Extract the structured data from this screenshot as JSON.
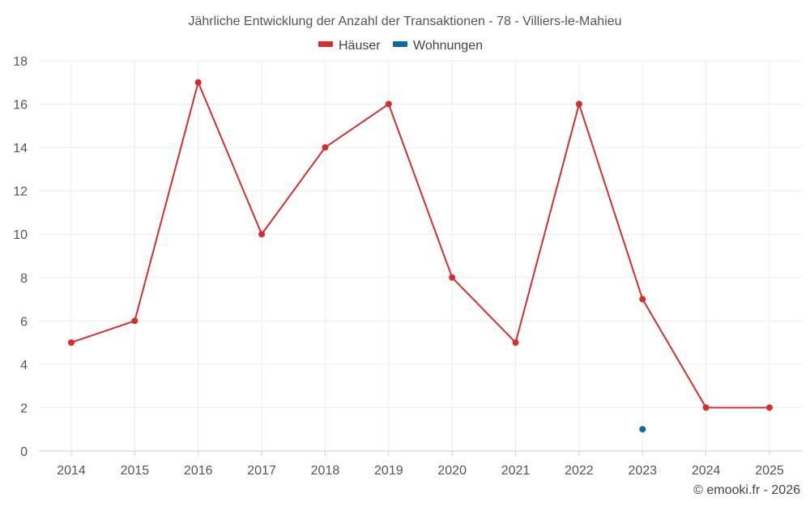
{
  "chart_data": {
    "type": "line",
    "title": "Jährliche Entwicklung der Anzahl der Transaktionen - 78 - Villiers-le-Mahieu",
    "categories": [
      "2014",
      "2015",
      "2016",
      "2017",
      "2018",
      "2019",
      "2020",
      "2021",
      "2022",
      "2023",
      "2024",
      "2025"
    ],
    "series": [
      {
        "name": "Häuser",
        "color": "#d32f2f",
        "values": [
          5,
          6,
          17,
          10,
          14,
          16,
          8,
          5,
          16,
          7,
          2,
          2
        ]
      },
      {
        "name": "Wohnungen",
        "color": "#0b6aa2",
        "values": [
          null,
          null,
          null,
          null,
          null,
          null,
          null,
          null,
          null,
          1,
          null,
          null
        ]
      }
    ],
    "ylim": [
      0,
      18
    ],
    "yticks": [
      0,
      2,
      4,
      6,
      8,
      10,
      12,
      14,
      16,
      18
    ],
    "grid": true,
    "legend_position": "top-center",
    "xlabel": "",
    "ylabel": ""
  },
  "credit": "© emooki.fr - 2026"
}
